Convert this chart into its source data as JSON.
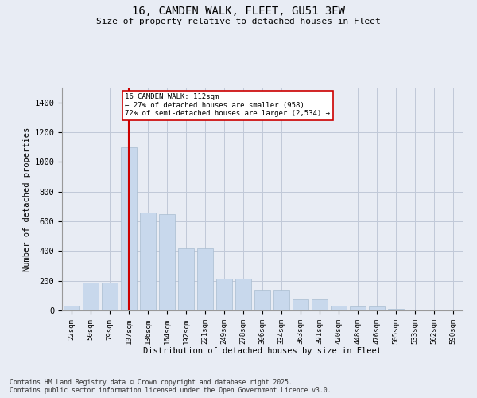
{
  "title_line1": "16, CAMDEN WALK, FLEET, GU51 3EW",
  "title_line2": "Size of property relative to detached houses in Fleet",
  "xlabel": "Distribution of detached houses by size in Fleet",
  "ylabel": "Number of detached properties",
  "categories": [
    "22sqm",
    "50sqm",
    "79sqm",
    "107sqm",
    "136sqm",
    "164sqm",
    "192sqm",
    "221sqm",
    "249sqm",
    "278sqm",
    "306sqm",
    "334sqm",
    "363sqm",
    "391sqm",
    "420sqm",
    "448sqm",
    "476sqm",
    "505sqm",
    "533sqm",
    "562sqm",
    "590sqm"
  ],
  "values": [
    30,
    190,
    190,
    1100,
    660,
    650,
    420,
    420,
    215,
    215,
    140,
    140,
    75,
    75,
    30,
    25,
    25,
    10,
    5,
    3,
    2
  ],
  "bar_color": "#c8d8ec",
  "bar_edge_color": "#a8bcd0",
  "vline_x": 3,
  "vline_color": "#cc0000",
  "annotation_text": "16 CAMDEN WALK: 112sqm\n← 27% of detached houses are smaller (958)\n72% of semi-detached houses are larger (2,534) →",
  "annotation_box_color": "#ffffff",
  "annotation_box_edge": "#cc0000",
  "ylim": [
    0,
    1500
  ],
  "yticks": [
    0,
    200,
    400,
    600,
    800,
    1000,
    1200,
    1400
  ],
  "grid_color": "#c0c8d8",
  "background_color": "#e8ecf4",
  "footer_line1": "Contains HM Land Registry data © Crown copyright and database right 2025.",
  "footer_line2": "Contains public sector information licensed under the Open Government Licence v3.0.",
  "font_family": "DejaVu Sans Mono"
}
